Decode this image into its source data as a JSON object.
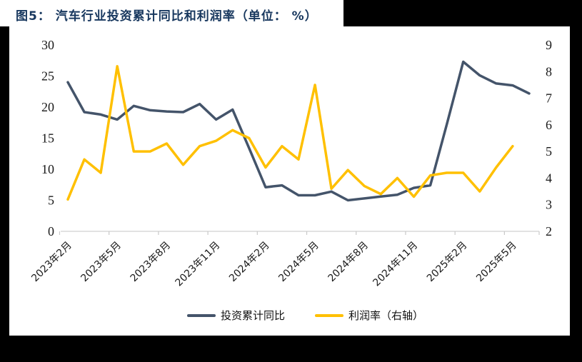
{
  "title": "图5： 汽车行业投资累计同比和利润率（单位： %）",
  "frame_colors": {
    "background": "#000000",
    "card": "#ffffff",
    "title_text": "#17375E"
  },
  "chart_data": {
    "type": "line",
    "title": "图5： 汽车行业投资累计同比和利润率（单位： %）",
    "x_tick_labels": [
      "2023年2月",
      "2023年5月",
      "2023年8月",
      "2023年11月",
      "2024年2月",
      "2024年5月",
      "2024年8月",
      "2024年11月",
      "2025年2月",
      "2025年5月"
    ],
    "x_months": [
      "2023-02",
      "2023-03",
      "2023-04",
      "2023-05",
      "2023-06",
      "2023-07",
      "2023-08",
      "2023-09",
      "2023-10",
      "2023-11",
      "2023-12",
      "2024-01",
      "2024-02",
      "2024-03",
      "2024-04",
      "2024-05",
      "2024-06",
      "2024-07",
      "2024-08",
      "2024-09",
      "2024-10",
      "2024-11",
      "2024-12",
      "2025-01",
      "2025-02",
      "2025-03",
      "2025-04",
      "2025-05",
      "2025-06"
    ],
    "left_axis": {
      "min": 0,
      "max": 30,
      "ticks": [
        0,
        5,
        10,
        15,
        20,
        25,
        30
      ]
    },
    "right_axis": {
      "min": 2,
      "max": 9,
      "ticks": [
        2,
        3,
        4,
        5,
        6,
        7,
        8,
        9
      ]
    },
    "grid": false,
    "legend_position": "bottom",
    "series": [
      {
        "name": "投资累计同比",
        "axis": "left",
        "color": "#44546A",
        "values": [
          24.0,
          19.2,
          18.8,
          18.0,
          20.2,
          19.5,
          19.3,
          19.2,
          20.5,
          18.0,
          19.6,
          13.4,
          7.1,
          7.4,
          5.8,
          5.8,
          6.4,
          5.0,
          5.3,
          5.6,
          5.9,
          7.0,
          7.4,
          17.2,
          27.3,
          25.1,
          23.8,
          23.5,
          22.2
        ]
      },
      {
        "name": "利润率（右轴）",
        "axis": "right",
        "color": "#FFC000",
        "values": [
          3.2,
          4.7,
          4.2,
          8.2,
          5.0,
          5.0,
          5.3,
          4.5,
          5.2,
          5.4,
          5.8,
          5.5,
          4.4,
          5.2,
          4.7,
          7.5,
          3.6,
          4.3,
          3.7,
          3.4,
          4.0,
          3.3,
          4.1,
          4.2,
          4.2,
          3.5,
          4.4,
          5.2,
          null
        ]
      }
    ],
    "axis_colors": {
      "baseline": "#D9D9D9",
      "tick": "#C9C9C9",
      "label_text": "#1a1a1a"
    }
  }
}
